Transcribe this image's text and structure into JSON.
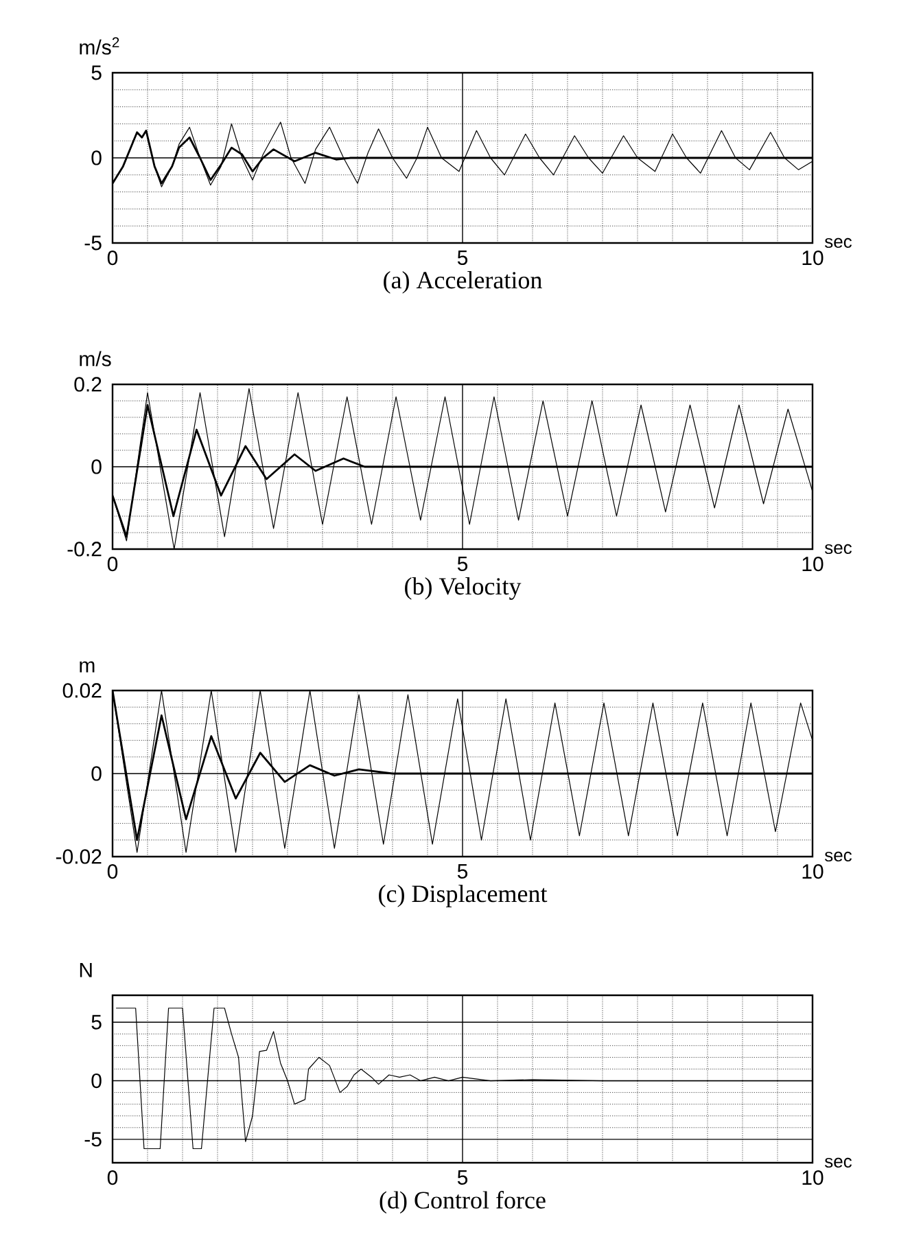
{
  "chart_data": [
    {
      "type": "line",
      "title": "(a) Acceleration",
      "xlabel": "sec",
      "ylabel": "m/s$^{2}$",
      "xlim": [
        0,
        10
      ],
      "ylim": [
        -5,
        5
      ],
      "xticks": [
        0,
        5,
        10
      ],
      "yticks": [
        -5,
        0,
        5
      ],
      "grid": true,
      "series": [
        {
          "color": "#000000",
          "x": [
            0,
            0.15,
            0.35,
            0.42,
            0.48,
            0.6,
            0.7,
            0.85,
            0.95,
            1.1,
            1.25,
            1.4,
            1.55,
            1.7,
            1.85,
            2.0,
            2.15,
            2.4,
            2.55,
            2.75,
            2.9,
            3.1,
            3.3,
            3.5,
            3.65,
            3.8,
            4.0,
            4.2,
            4.35,
            4.5,
            4.7,
            4.95,
            5.2,
            5.4,
            5.6,
            5.9,
            6.1,
            6.3,
            6.6,
            6.8,
            7.0,
            7.3,
            7.5,
            7.75,
            8.0,
            8.2,
            8.4,
            8.7,
            8.9,
            9.1,
            9.4,
            9.6,
            9.8,
            10
          ],
          "values": [
            -1.5,
            -0.5,
            1.5,
            1.2,
            1.6,
            -0.5,
            -1.7,
            -0.5,
            0.8,
            1.8,
            0,
            -1.6,
            -0.5,
            2.0,
            0,
            -1.3,
            0.2,
            2.1,
            0,
            -1.5,
            0.5,
            1.8,
            0,
            -1.5,
            0.3,
            1.7,
            0,
            -1.2,
            0,
            1.8,
            0,
            -0.8,
            1.6,
            0,
            -1.0,
            1.4,
            0,
            -1.0,
            1.3,
            0,
            -0.9,
            1.3,
            0,
            -0.8,
            1.4,
            0,
            -0.9,
            1.6,
            0,
            -0.7,
            1.5,
            0,
            -0.7,
            -0.2
          ]
        },
        {
          "color": "#000000",
          "x": [
            0,
            0.15,
            0.35,
            0.42,
            0.48,
            0.6,
            0.7,
            0.85,
            0.95,
            1.1,
            1.25,
            1.4,
            1.55,
            1.7,
            1.85,
            2.0,
            2.15,
            2.3,
            2.6,
            2.9,
            3.2,
            3.4,
            4,
            5,
            6,
            7,
            8,
            9,
            10
          ],
          "values": [
            -1.5,
            -0.5,
            1.5,
            1.2,
            1.6,
            -0.5,
            -1.5,
            -0.5,
            0.6,
            1.2,
            0,
            -1.3,
            -0.4,
            0.6,
            0.2,
            -0.8,
            0,
            0.5,
            -0.2,
            0.3,
            -0.1,
            0,
            0,
            0,
            0,
            0,
            0,
            0,
            0
          ]
        }
      ]
    },
    {
      "type": "line",
      "title": "(b) Velocity",
      "xlabel": "sec",
      "ylabel": "m/s",
      "xlim": [
        0,
        10
      ],
      "ylim": [
        -0.2,
        0.2
      ],
      "xticks": [
        0,
        5,
        10
      ],
      "yticks": [
        -0.2,
        0,
        0.2
      ],
      "grid": true,
      "series": [
        {
          "color": "#000000",
          "x": [
            0,
            0.2,
            0.5,
            0.88,
            1.25,
            1.6,
            1.95,
            2.3,
            2.65,
            3.0,
            3.35,
            3.7,
            4.05,
            4.4,
            4.75,
            5.1,
            5.45,
            5.8,
            6.15,
            6.5,
            6.85,
            7.2,
            7.55,
            7.9,
            8.25,
            8.6,
            8.95,
            9.3,
            9.65,
            10
          ],
          "values": [
            -0.07,
            -0.18,
            0.18,
            -0.2,
            0.18,
            -0.17,
            0.19,
            -0.15,
            0.18,
            -0.14,
            0.17,
            -0.14,
            0.17,
            -0.13,
            0.17,
            -0.14,
            0.17,
            -0.13,
            0.16,
            -0.12,
            0.16,
            -0.12,
            0.15,
            -0.11,
            0.15,
            -0.1,
            0.15,
            -0.09,
            0.14,
            -0.06
          ]
        },
        {
          "color": "#000000",
          "x": [
            0,
            0.2,
            0.5,
            0.87,
            1.2,
            1.55,
            1.9,
            2.2,
            2.6,
            2.9,
            3.3,
            3.6,
            4,
            5,
            6,
            7,
            8,
            9,
            10
          ],
          "values": [
            -0.07,
            -0.17,
            0.15,
            -0.12,
            0.09,
            -0.07,
            0.05,
            -0.03,
            0.03,
            -0.01,
            0.02,
            0,
            0,
            0,
            0,
            0,
            0,
            0,
            0
          ]
        }
      ]
    },
    {
      "type": "line",
      "title": "(c) Displacement",
      "xlabel": "sec",
      "ylabel": "m",
      "xlim": [
        0,
        10
      ],
      "ylim": [
        -0.02,
        0.02
      ],
      "xticks": [
        0,
        5,
        10
      ],
      "yticks": [
        -0.02,
        0,
        0.02
      ],
      "grid": true,
      "series": [
        {
          "color": "#000000",
          "x": [
            0,
            0.35,
            0.7,
            1.05,
            1.41,
            1.76,
            2.11,
            2.46,
            2.82,
            3.17,
            3.52,
            3.87,
            4.22,
            4.57,
            4.93,
            5.27,
            5.62,
            5.97,
            6.32,
            6.67,
            7.02,
            7.37,
            7.72,
            8.07,
            8.43,
            8.78,
            9.12,
            9.47,
            9.83,
            10
          ],
          "values": [
            0.02,
            -0.019,
            0.02,
            -0.019,
            0.02,
            -0.019,
            0.02,
            -0.018,
            0.02,
            -0.018,
            0.019,
            -0.017,
            0.019,
            -0.017,
            0.018,
            -0.016,
            0.018,
            -0.016,
            0.017,
            -0.015,
            0.017,
            -0.015,
            0.017,
            -0.015,
            0.017,
            -0.015,
            0.017,
            -0.014,
            0.017,
            0.008
          ]
        },
        {
          "color": "#000000",
          "x": [
            0,
            0.35,
            0.7,
            1.05,
            1.41,
            1.76,
            2.11,
            2.46,
            2.82,
            3.17,
            3.52,
            4,
            5,
            6,
            7,
            8,
            9,
            10
          ],
          "values": [
            0.02,
            -0.016,
            0.014,
            -0.011,
            0.009,
            -0.006,
            0.005,
            -0.002,
            0.002,
            -0.0005,
            0.001,
            0,
            0,
            0,
            0,
            0,
            0,
            0
          ]
        }
      ]
    },
    {
      "type": "line",
      "title": "(d) Control force",
      "xlabel": "sec",
      "ylabel": "N",
      "xlim": [
        0,
        10
      ],
      "ylim": [
        -7,
        7.3
      ],
      "xticks": [
        0,
        5,
        10
      ],
      "yticks": [
        -5,
        0,
        5
      ],
      "grid": true,
      "series": [
        {
          "color": "#000000",
          "x": [
            0.05,
            0.33,
            0.45,
            0.68,
            0.8,
            1.0,
            1.15,
            1.27,
            1.45,
            1.6,
            1.7,
            1.8,
            1.9,
            2.0,
            2.1,
            2.2,
            2.3,
            2.4,
            2.5,
            2.6,
            2.75,
            2.8,
            2.95,
            3.1,
            3.25,
            3.35,
            3.45,
            3.55,
            3.7,
            3.8,
            3.95,
            4.1,
            4.25,
            4.4,
            4.6,
            4.8,
            5.0,
            5.4,
            6,
            7,
            8,
            9,
            10
          ],
          "values": [
            6.2,
            6.2,
            -5.8,
            -5.8,
            6.2,
            6.2,
            -5.8,
            -5.8,
            6.2,
            6.2,
            4,
            2,
            -5.2,
            -3,
            2.5,
            2.6,
            4.2,
            1.5,
            0,
            -2,
            -1.6,
            1.0,
            2.0,
            1.3,
            -1,
            -0.5,
            0.5,
            1.0,
            0.3,
            -0.3,
            0.5,
            0.3,
            0.5,
            0,
            0.3,
            0,
            0.3,
            0,
            0.1,
            0,
            0,
            0,
            0
          ]
        }
      ]
    }
  ]
}
